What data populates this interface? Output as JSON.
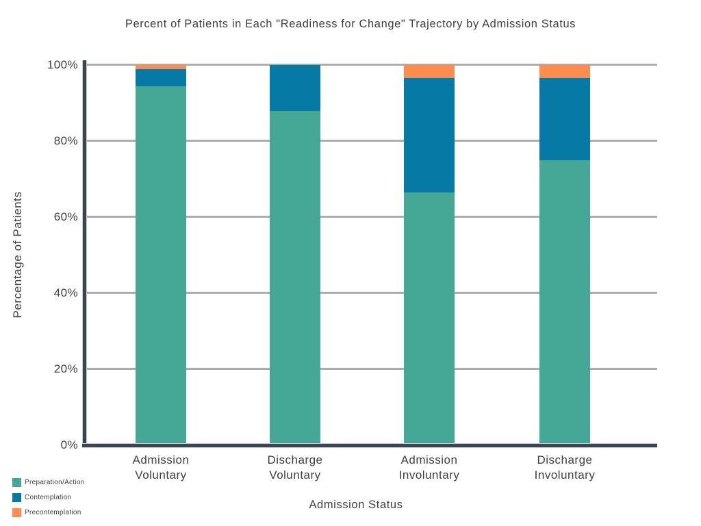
{
  "title": "Percent of Patients in Each \"Readiness for Change\" Trajectory by Admission Status",
  "chart_data": {
    "type": "bar",
    "stacked": true,
    "stack_unit": "percent",
    "title": "Percent of Patients in Each \"Readiness for Change\" Trajectory by Admission Status",
    "xlabel": "Admission Status",
    "ylabel": "Percentage of Patients",
    "categories": [
      [
        "Admission",
        "Voluntary"
      ],
      [
        "Discharge",
        "Voluntary"
      ],
      [
        "Admission",
        "Involuntary"
      ],
      [
        "Discharge",
        "Involuntary"
      ]
    ],
    "series": [
      {
        "name": "Preparation/Action",
        "color": "#45A795",
        "values": [
          94.5,
          88,
          66.5,
          75
        ]
      },
      {
        "name": "Contemplation",
        "color": "#0679A4",
        "values": [
          4.5,
          12,
          30,
          21.5
        ]
      },
      {
        "name": "Precontemplation",
        "color": "#FC8D4E",
        "values": [
          1,
          0,
          3.5,
          3.5
        ]
      }
    ],
    "ylim": [
      0,
      100
    ],
    "y_ticks": [
      "0%",
      "20%",
      "40%",
      "60%",
      "80%",
      "100%"
    ],
    "grid": true,
    "legend_position": "bottom-left"
  },
  "colors": {
    "background": "#FFFFFF",
    "axis": "#3A4551",
    "gridline": "#B1B1B1",
    "text": "#3F3F3F"
  }
}
